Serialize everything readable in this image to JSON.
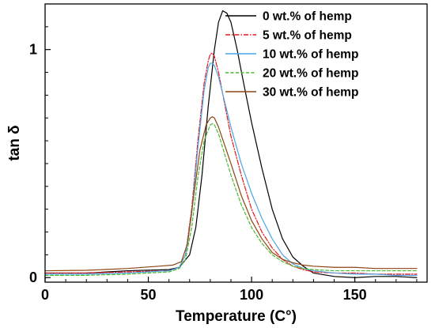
{
  "chart_data": {
    "type": "line",
    "title": "",
    "xlabel": "Temperature (C°)",
    "ylabel": "tan δ",
    "xlim": [
      0,
      185
    ],
    "ylim": [
      -0.02,
      1.2
    ],
    "xticks": [
      0,
      50,
      100,
      150
    ],
    "xtick_labels": [
      "0",
      "50",
      "100",
      "150"
    ],
    "yticks": [
      0,
      1
    ],
    "ytick_labels": [
      "0",
      "1"
    ],
    "grid": false,
    "legend_position": "top-right",
    "series": [
      {
        "name": "0 wt.% of hemp",
        "color": "#000000",
        "dash": "solid",
        "x": [
          0,
          20,
          40,
          60,
          65,
          70,
          73,
          76,
          79,
          82,
          84,
          86,
          88,
          90,
          93,
          96,
          100,
          105,
          110,
          115,
          120,
          125,
          130,
          140,
          150,
          160,
          170,
          180
        ],
        "y": [
          0.02,
          0.02,
          0.03,
          0.035,
          0.045,
          0.1,
          0.22,
          0.45,
          0.75,
          1.0,
          1.12,
          1.17,
          1.16,
          1.12,
          1.0,
          0.86,
          0.68,
          0.48,
          0.3,
          0.17,
          0.09,
          0.05,
          0.02,
          0.005,
          0.0,
          0.005,
          0.005,
          0.0
        ]
      },
      {
        "name": "5 wt.% of hemp",
        "color": "#e8161b",
        "dash": "dashdot",
        "x": [
          0,
          20,
          40,
          60,
          65,
          68,
          71,
          74,
          77,
          79,
          80,
          81,
          82,
          84,
          87,
          90,
          95,
          100,
          105,
          110,
          115,
          120,
          125,
          130,
          140,
          150,
          160,
          170,
          180
        ],
        "y": [
          0.02,
          0.02,
          0.025,
          0.03,
          0.045,
          0.1,
          0.3,
          0.6,
          0.85,
          0.95,
          0.98,
          0.985,
          0.97,
          0.9,
          0.76,
          0.62,
          0.45,
          0.3,
          0.2,
          0.13,
          0.08,
          0.05,
          0.035,
          0.025,
          0.02,
          0.02,
          0.015,
          0.015,
          0.015
        ]
      },
      {
        "name": "10 wt.% of hemp",
        "color": "#4aa6e8",
        "dash": "solid",
        "x": [
          0,
          20,
          40,
          60,
          65,
          68,
          71,
          74,
          77,
          79,
          80,
          81,
          82,
          84,
          87,
          90,
          95,
          100,
          105,
          110,
          115,
          120,
          125,
          130,
          140,
          150,
          160,
          170,
          180
        ],
        "y": [
          0.015,
          0.015,
          0.02,
          0.03,
          0.045,
          0.1,
          0.28,
          0.57,
          0.82,
          0.92,
          0.94,
          0.94,
          0.93,
          0.88,
          0.77,
          0.66,
          0.5,
          0.37,
          0.26,
          0.17,
          0.1,
          0.06,
          0.04,
          0.03,
          0.02,
          0.015,
          0.015,
          0.01,
          0.01
        ]
      },
      {
        "name": "20 wt.% of hemp",
        "color": "#4cb82e",
        "dash": "dashed",
        "x": [
          0,
          20,
          40,
          60,
          65,
          68,
          71,
          74,
          77,
          80,
          81,
          82,
          84,
          87,
          90,
          95,
          100,
          105,
          110,
          115,
          120,
          125,
          130,
          140,
          150,
          160,
          170,
          180
        ],
        "y": [
          0.01,
          0.01,
          0.015,
          0.025,
          0.04,
          0.08,
          0.22,
          0.44,
          0.6,
          0.67,
          0.675,
          0.67,
          0.63,
          0.54,
          0.45,
          0.32,
          0.22,
          0.15,
          0.1,
          0.07,
          0.05,
          0.04,
          0.035,
          0.03,
          0.03,
          0.03,
          0.03,
          0.03
        ]
      },
      {
        "name": "30 wt.% of hemp",
        "color": "#8b4513",
        "dash": "solid",
        "x": [
          0,
          20,
          40,
          55,
          62,
          66,
          69,
          72,
          75,
          78,
          80,
          81,
          82,
          84,
          87,
          90,
          95,
          100,
          105,
          110,
          115,
          120,
          125,
          130,
          140,
          150,
          160,
          170,
          180
        ],
        "y": [
          0.03,
          0.032,
          0.04,
          0.05,
          0.055,
          0.07,
          0.15,
          0.36,
          0.56,
          0.67,
          0.7,
          0.705,
          0.7,
          0.66,
          0.58,
          0.5,
          0.36,
          0.25,
          0.17,
          0.11,
          0.08,
          0.065,
          0.055,
          0.05,
          0.045,
          0.045,
          0.04,
          0.04,
          0.04
        ]
      }
    ]
  }
}
